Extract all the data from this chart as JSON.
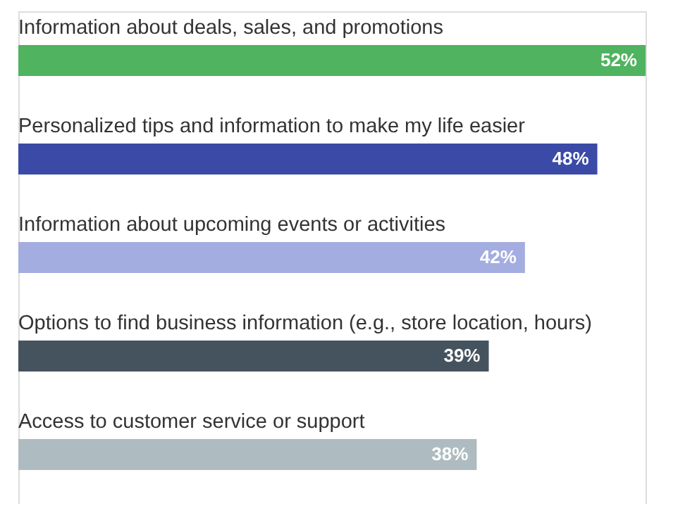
{
  "chart_data": {
    "type": "bar",
    "orientation": "horizontal",
    "categories": [
      "Information about deals, sales, and promotions",
      "Personalized tips and information to make my life easier",
      "Information about upcoming events or activities",
      "Options to find business information (e.g., store location, hours)",
      "Access to customer service or support"
    ],
    "values": [
      52,
      48,
      42,
      39,
      38
    ],
    "colors": [
      "#4fb35f",
      "#3a4aa6",
      "#a3addf",
      "#45535e",
      "#aebbc0"
    ],
    "value_labels": [
      "52%",
      "48%",
      "42%",
      "39%",
      "38%"
    ]
  }
}
